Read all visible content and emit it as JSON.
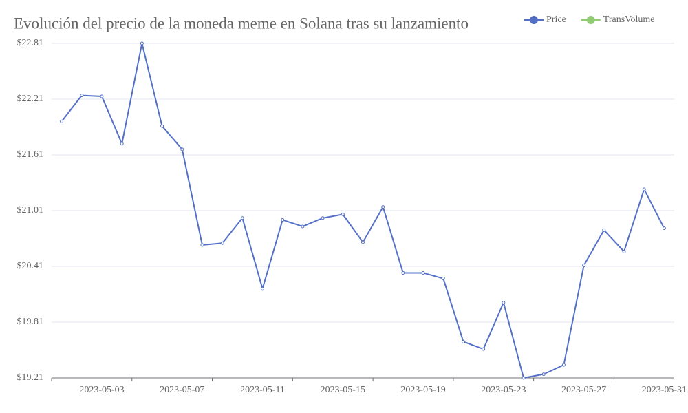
{
  "chart_data": {
    "type": "line",
    "title": "Evolución del precio de la moneda meme en Solana tras su lanzamiento",
    "categories": [
      null,
      null,
      "2023-05-03",
      null,
      null,
      null,
      "2023-05-07",
      null,
      null,
      null,
      "2023-05-11",
      null,
      null,
      null,
      "2023-05-15",
      null,
      null,
      null,
      "2023-05-19",
      null,
      null,
      null,
      "2023-05-23",
      null,
      null,
      null,
      "2023-05-27",
      null,
      null,
      null,
      "2023-05-31"
    ],
    "series": [
      {
        "name": "Price",
        "color": "#5470c6",
        "values": [
          21.97,
          22.25,
          22.24,
          21.73,
          22.81,
          21.92,
          21.67,
          20.64,
          20.66,
          20.93,
          20.17,
          20.91,
          20.84,
          20.93,
          20.97,
          20.67,
          21.05,
          20.34,
          20.34,
          20.28,
          19.6,
          19.52,
          20.02,
          19.21,
          19.25,
          19.35,
          20.42,
          20.8,
          20.57,
          21.24,
          20.82
        ]
      },
      {
        "name": "TransVolume",
        "color": "#91cc75"
      }
    ],
    "ylim": [
      19.21,
      22.81
    ],
    "yticks": [
      {
        "value": 19.21,
        "label": "$19.21"
      },
      {
        "value": 19.81,
        "label": "$19.81"
      },
      {
        "value": 20.41,
        "label": "$20.41"
      },
      {
        "value": 21.01,
        "label": "$21.01"
      },
      {
        "value": 21.61,
        "label": "$21.61"
      },
      {
        "value": 22.21,
        "label": "$22.21"
      },
      {
        "value": 22.81,
        "label": "$22.81"
      }
    ],
    "grid": true
  }
}
